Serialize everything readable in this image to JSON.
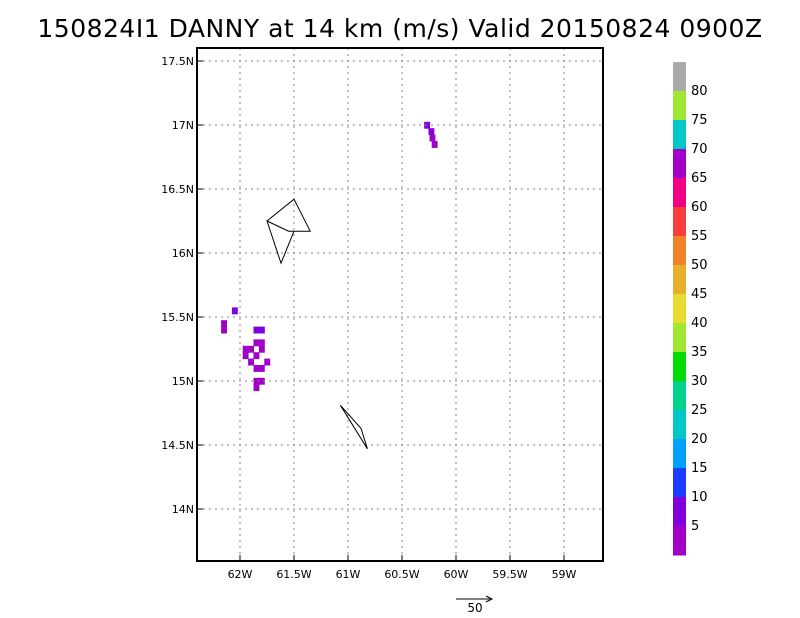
{
  "title": "150824I1 DANNY at 14 km (m/s) Valid 20150824 0900Z",
  "chart_data": {
    "type": "heatmap",
    "title": "150824I1 DANNY at 14 km (m/s) Valid 20150824 0900Z",
    "x_ticks": [
      "62W",
      "61.5W",
      "61W",
      "60.5W",
      "60W",
      "59.5W",
      "59W"
    ],
    "x_tick_values": [
      -62,
      -61.5,
      -61,
      -60.5,
      -60,
      -59.5,
      -59
    ],
    "y_ticks": [
      "14N",
      "14.5N",
      "15N",
      "15.5N",
      "16N",
      "16.5N",
      "17N",
      "17.5N"
    ],
    "y_tick_values": [
      14,
      14.5,
      15,
      15.5,
      16,
      16.5,
      17,
      17.5
    ],
    "xlim": [
      -62.2,
      -60.35
    ],
    "ylim": [
      13.6,
      17.55
    ],
    "grid": true,
    "colorbar": {
      "labels": [
        "5",
        "10",
        "15",
        "20",
        "25",
        "30",
        "35",
        "40",
        "45",
        "50",
        "55",
        "60",
        "65",
        "70",
        "75",
        "80"
      ],
      "colors": [
        "#a000c8",
        "#8200dc",
        "#1e3cff",
        "#00a0ff",
        "#00c8c8",
        "#00d28c",
        "#00dc00",
        "#a0e632",
        "#e6dc32",
        "#e6af2d",
        "#f08228",
        "#fa3c3c",
        "#f00082",
        "#a000c8",
        "#00c8c8",
        "#a0e632",
        "#aaaaaa"
      ]
    },
    "vector_scale": {
      "label": "50"
    },
    "track_lines": [
      [
        [
          -61.75,
          16.25
        ],
        [
          -61.5,
          16.42
        ],
        [
          -61.35,
          16.17
        ],
        [
          -61.55,
          16.17
        ],
        [
          -61.75,
          16.25
        ],
        [
          -61.62,
          15.92
        ],
        [
          -61.5,
          16.17
        ]
      ],
      [
        [
          -61.07,
          14.81
        ],
        [
          -60.88,
          14.63
        ],
        [
          -60.82,
          14.47
        ],
        [
          -61.07,
          14.81
        ]
      ]
    ],
    "cells": [
      {
        "x": -62.15,
        "y": 15.45,
        "v": 5
      },
      {
        "x": -62.15,
        "y": 15.4,
        "v": 5
      },
      {
        "x": -62.05,
        "y": 15.55,
        "v": 10
      },
      {
        "x": -61.85,
        "y": 15.4,
        "v": 10
      },
      {
        "x": -61.8,
        "y": 15.4,
        "v": 10
      },
      {
        "x": -61.95,
        "y": 15.25,
        "v": 5
      },
      {
        "x": -61.9,
        "y": 15.25,
        "v": 5
      },
      {
        "x": -61.85,
        "y": 15.3,
        "v": 5
      },
      {
        "x": -61.8,
        "y": 15.3,
        "v": 5
      },
      {
        "x": -61.95,
        "y": 15.2,
        "v": 5
      },
      {
        "x": -61.9,
        "y": 15.15,
        "v": 5
      },
      {
        "x": -61.85,
        "y": 15.2,
        "v": 5
      },
      {
        "x": -61.8,
        "y": 15.25,
        "v": 5
      },
      {
        "x": -61.85,
        "y": 15.1,
        "v": 5
      },
      {
        "x": -61.8,
        "y": 15.1,
        "v": 5
      },
      {
        "x": -61.85,
        "y": 15.0,
        "v": 5
      },
      {
        "x": -61.8,
        "y": 15.0,
        "v": 5
      },
      {
        "x": -61.85,
        "y": 14.95,
        "v": 5
      },
      {
        "x": -61.75,
        "y": 15.15,
        "v": 5
      },
      {
        "x": -60.27,
        "y": 17.0,
        "v": 10
      },
      {
        "x": -60.23,
        "y": 16.95,
        "v": 10
      },
      {
        "x": -60.22,
        "y": 16.9,
        "v": 5
      },
      {
        "x": -60.2,
        "y": 16.85,
        "v": 5
      }
    ]
  }
}
